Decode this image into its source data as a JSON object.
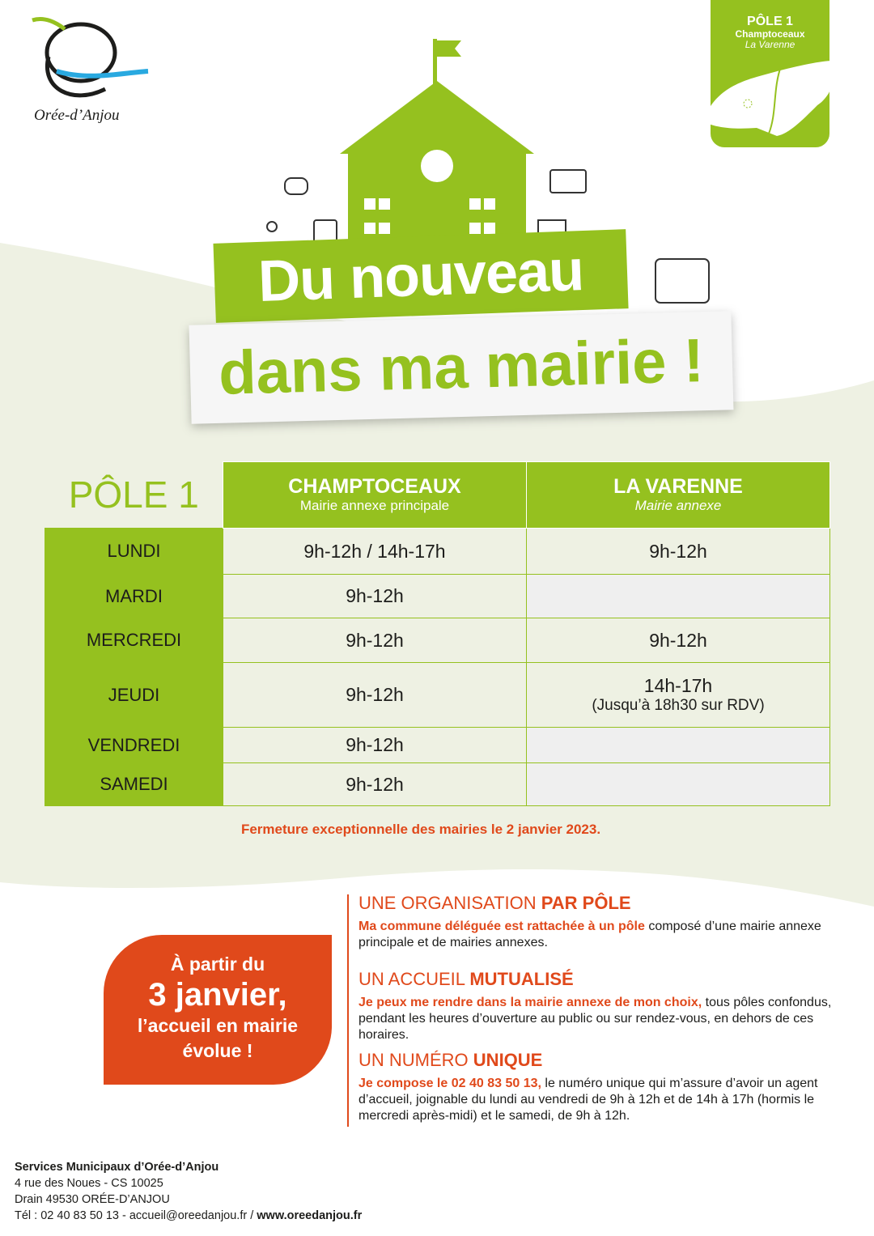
{
  "logo": {
    "name": "Orée-d’Anjou"
  },
  "badge": {
    "title": "PÔLE 1",
    "line1": "Champtoceaux",
    "line2": "La Varenne"
  },
  "headline": {
    "line1": "Du nouveau",
    "line2": "dans ma mairie !"
  },
  "table": {
    "pole": "PÔLE 1",
    "columns": [
      {
        "name": "CHAMPTOCEAUX",
        "subtitle": "Mairie annexe principale"
      },
      {
        "name": "LA VARENNE",
        "subtitle": "Mairie annexe"
      }
    ],
    "rows": [
      {
        "day": "LUNDI",
        "cells": [
          "9h-12h / 14h-17h",
          "9h-12h"
        ]
      },
      {
        "day": "MARDI",
        "cells": [
          "9h-12h",
          null
        ]
      },
      {
        "day": "MERCREDI",
        "cells": [
          "9h-12h",
          "9h-12h"
        ]
      },
      {
        "day": "JEUDI",
        "cells": [
          "9h-12h",
          "14h-17h"
        ],
        "note": "(Jusqu’à 18h30 sur RDV)"
      },
      {
        "day": "VENDREDI",
        "cells": [
          "9h-12h",
          null
        ]
      },
      {
        "day": "SAMEDI",
        "cells": [
          "9h-12h",
          null
        ]
      }
    ]
  },
  "closure": "Fermeture exceptionnelle des mairies le 2 janvier 2023.",
  "callout": {
    "line1": "À partir du",
    "line2": "3 janvier,",
    "line3": "l’accueil en mairie",
    "line4": "évolue !"
  },
  "sections": [
    {
      "title": "UNE ORGANISATION",
      "title_bold": "PAR PÔLE",
      "lead": "Ma commune déléguée est rattachée à un pôle",
      "text": "composé d’une mairie annexe principale et de mairies annexes."
    },
    {
      "title": "UN ACCUEIL",
      "title_bold": "MUTUALISÉ",
      "lead": "Je peux me rendre dans la mairie annexe de mon choix,",
      "text": "tous pôles confondus, pendant les heures d’ouverture au public ou sur rendez-vous, en dehors de ces horaires."
    },
    {
      "title": "UN NUMÉRO",
      "title_bold": "UNIQUE",
      "lead": "Je compose le 02 40 83 50 13,",
      "text": "le numéro unique qui m’assure d’avoir un agent d’accueil, joignable du lundi au vendredi de 9h à 12h et de 14h à 17h (hormis le mercredi après-midi) et le samedi, de 9h à 12h."
    }
  ],
  "footer": {
    "org": "Services Municipaux d’Orée-d’Anjou",
    "address1": "4 rue des Noues - CS 10025",
    "address2": "Drain 49530 ORÉE-D’ANJOU",
    "contact": "Tél : 02 40 83 50 13 - accueil@oreedanjou.fr",
    "separator": "/",
    "website": "www.oreedanjou.fr"
  }
}
